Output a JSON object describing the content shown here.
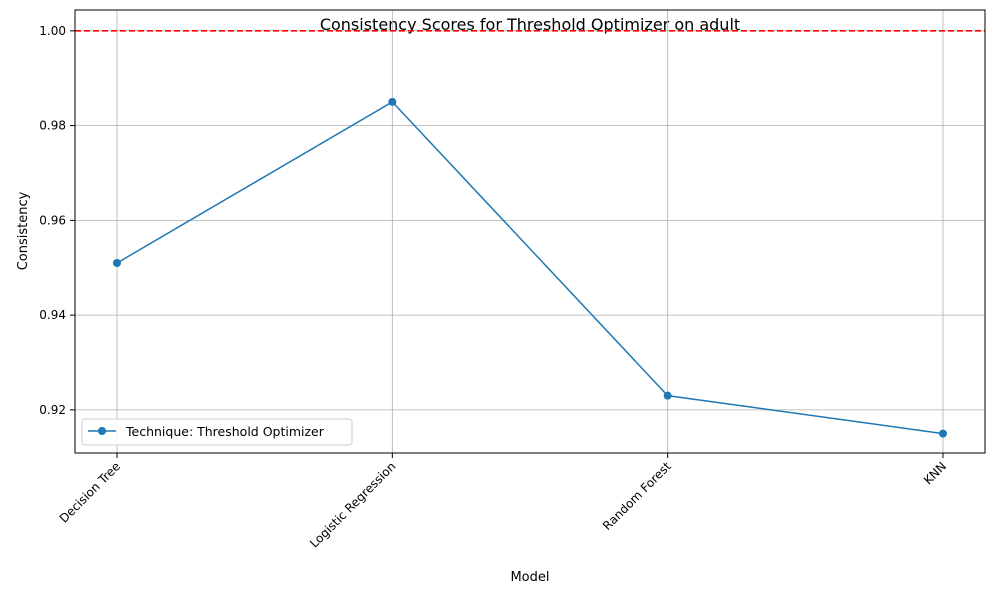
{
  "chart_data": {
    "type": "line",
    "title": "Consistency Scores for Threshold Optimizer on adult",
    "xlabel": "Model",
    "ylabel": "Consistency",
    "categories": [
      "Decision Tree",
      "Logistic Regression",
      "Random Forest",
      "KNN"
    ],
    "series": [
      {
        "name": "Technique: Threshold Optimizer",
        "values": [
          0.951,
          0.985,
          0.923,
          0.915
        ],
        "color": "#1f77b4",
        "marker": "circle"
      }
    ],
    "reference_line": {
      "y": 1.0,
      "color": "#ff0000",
      "style": "dashed"
    },
    "yticks": [
      0.92,
      0.94,
      0.96,
      0.98,
      1.0
    ],
    "ytick_labels": [
      "0.92",
      "0.94",
      "0.96",
      "0.98",
      "1.00"
    ],
    "ylim": [
      0.9109,
      1.0044
    ],
    "grid": true,
    "legend_position": "lower-left",
    "xtick_rotation": 45
  }
}
